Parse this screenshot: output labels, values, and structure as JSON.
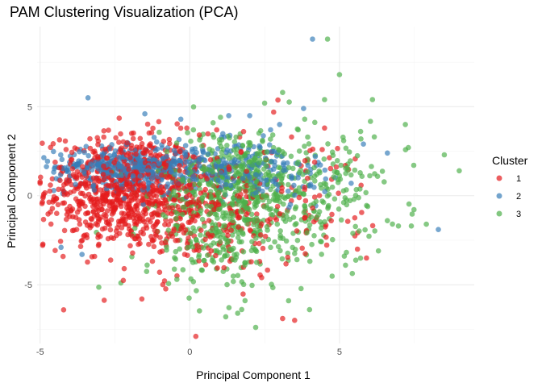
{
  "chart_data": {
    "type": "scatter",
    "title": "PAM Clustering Visualization (PCA)",
    "xlabel": "Principal Component 1",
    "ylabel": "Principal Component 2",
    "xlim": [
      -5.1,
      9.5
    ],
    "ylim": [
      -8.3,
      9.5
    ],
    "x_ticks": [
      -5,
      0,
      5
    ],
    "y_ticks": [
      -5,
      0,
      5
    ],
    "x_tick_labels": [
      "-5",
      "0",
      "5"
    ],
    "y_tick_labels": [
      "-5",
      "0",
      "5"
    ],
    "grid": true,
    "legend_position": "right",
    "legend_title": "Cluster",
    "series": [
      {
        "name": "1",
        "color": "#e41a1c",
        "outliers": [
          [
            -5.0,
            0.7
          ],
          [
            -4.3,
            1.6
          ],
          [
            -4.4,
            -0.5
          ],
          [
            0.2,
            -7.9
          ],
          [
            -1.6,
            -5.8
          ],
          [
            -0.9,
            -5.0
          ],
          [
            2.4,
            -4.6
          ],
          [
            3.1,
            -6.9
          ],
          [
            3.5,
            -7.0
          ],
          [
            5.6,
            -3.0
          ],
          [
            5.9,
            -3.5
          ],
          [
            2.8,
            4.7
          ],
          [
            -0.1,
            3.8
          ],
          [
            0.9,
            3.7
          ],
          [
            4.5,
            3.8
          ],
          [
            3.4,
            3.3
          ]
        ],
        "clusters": [
          {
            "cx": -2.2,
            "cy": 0.3,
            "sx": 1.3,
            "sy": 1.6,
            "n": 760
          },
          {
            "cx": 0.3,
            "cy": -0.8,
            "sx": 1.6,
            "sy": 1.8,
            "n": 300
          },
          {
            "cx": 4.0,
            "cy": -0.2,
            "sx": 1.3,
            "sy": 1.7,
            "n": 70
          }
        ]
      },
      {
        "name": "2",
        "color": "#377eb8",
        "outliers": [
          [
            4.1,
            8.8
          ],
          [
            -3.4,
            5.5
          ],
          [
            -1.5,
            4.6
          ],
          [
            3.8,
            4.9
          ],
          [
            -3.6,
            -3.3
          ],
          [
            -4.3,
            -2.9
          ],
          [
            8.3,
            -1.9
          ],
          [
            1.3,
            4.5
          ],
          [
            -0.3,
            4.3
          ],
          [
            3.0,
            4.0
          ],
          [
            2.0,
            4.5
          ],
          [
            5.8,
            2.9
          ],
          [
            6.6,
            2.4
          ]
        ],
        "clusters": [
          {
            "cx": -2.3,
            "cy": 1.6,
            "sx": 1.1,
            "sy": 0.55,
            "n": 320
          },
          {
            "cx": 0.2,
            "cy": 1.5,
            "sx": 1.5,
            "sy": 0.75,
            "n": 260
          },
          {
            "cx": 2.6,
            "cy": 1.4,
            "sx": 1.1,
            "sy": 0.8,
            "n": 80
          }
        ]
      },
      {
        "name": "3",
        "color": "#4daf4a",
        "outliers": [
          [
            4.6,
            8.8
          ],
          [
            5.0,
            6.8
          ],
          [
            3.1,
            5.8
          ],
          [
            6.1,
            5.4
          ],
          [
            4.5,
            5.4
          ],
          [
            2.5,
            5.2
          ],
          [
            7.2,
            4.0
          ],
          [
            7.3,
            2.7
          ],
          [
            8.5,
            2.3
          ],
          [
            9.0,
            1.4
          ],
          [
            7.9,
            -1.6
          ],
          [
            7.4,
            -1.7
          ],
          [
            6.6,
            -1.4
          ],
          [
            2.2,
            -7.4
          ],
          [
            1.2,
            -6.8
          ],
          [
            1.6,
            -6.6
          ],
          [
            4.0,
            -6.4
          ],
          [
            3.3,
            -5.9
          ],
          [
            -2.3,
            -4.9
          ],
          [
            -3.5,
            1.3
          ],
          [
            -2.3,
            1.2
          ],
          [
            6.3,
            -3.1
          ],
          [
            5.2,
            -3.9
          ]
        ],
        "clusters": [
          {
            "cx": 1.6,
            "cy": 0.6,
            "sx": 1.3,
            "sy": 1.6,
            "n": 520
          },
          {
            "cx": 1.2,
            "cy": -2.4,
            "sx": 1.4,
            "sy": 1.6,
            "n": 220
          },
          {
            "cx": 4.8,
            "cy": 0.3,
            "sx": 1.2,
            "sy": 1.9,
            "n": 130
          }
        ]
      }
    ]
  }
}
